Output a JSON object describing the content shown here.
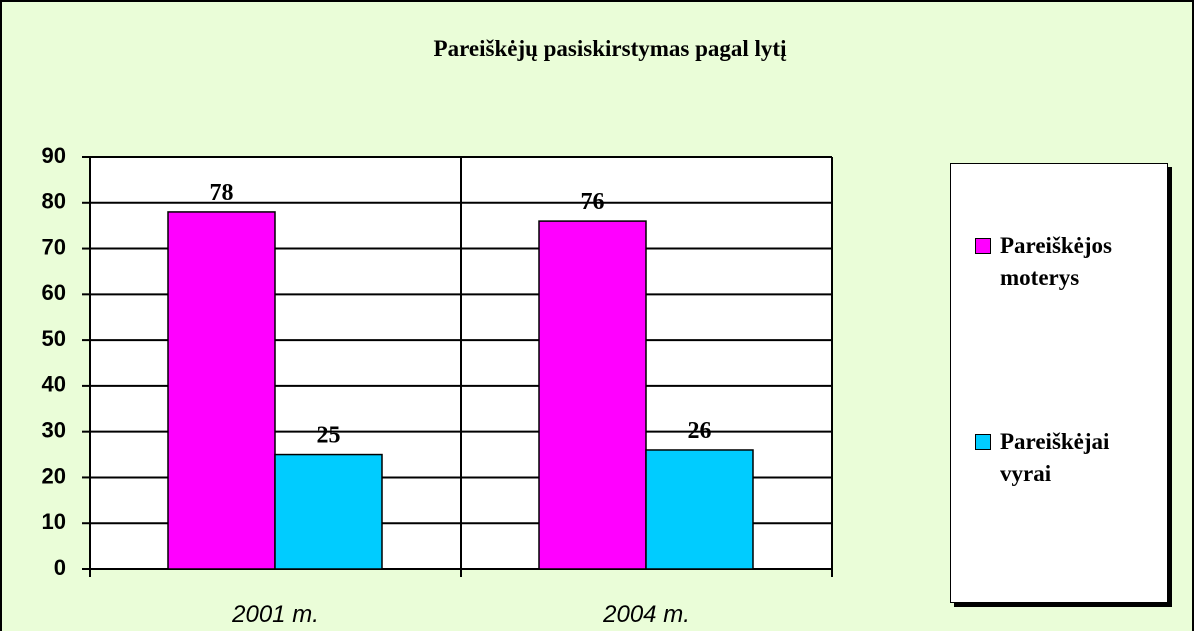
{
  "chart_data": {
    "type": "bar",
    "title": "Pareiškėjų pasiskirstymas pagal lytį",
    "categories": [
      "2001 m.",
      "2004 m."
    ],
    "series": [
      {
        "name": "Pareiškėjos moterys",
        "color": "#ff00ff",
        "values": [
          78,
          76
        ]
      },
      {
        "name": "Pareiškėjai vyrai",
        "color": "#00ccff",
        "values": [
          25,
          26
        ]
      }
    ],
    "ylim": [
      0,
      90
    ],
    "yticks": [
      0,
      10,
      20,
      30,
      40,
      50,
      60,
      70,
      80,
      90
    ],
    "grid": true,
    "legend": "right"
  }
}
